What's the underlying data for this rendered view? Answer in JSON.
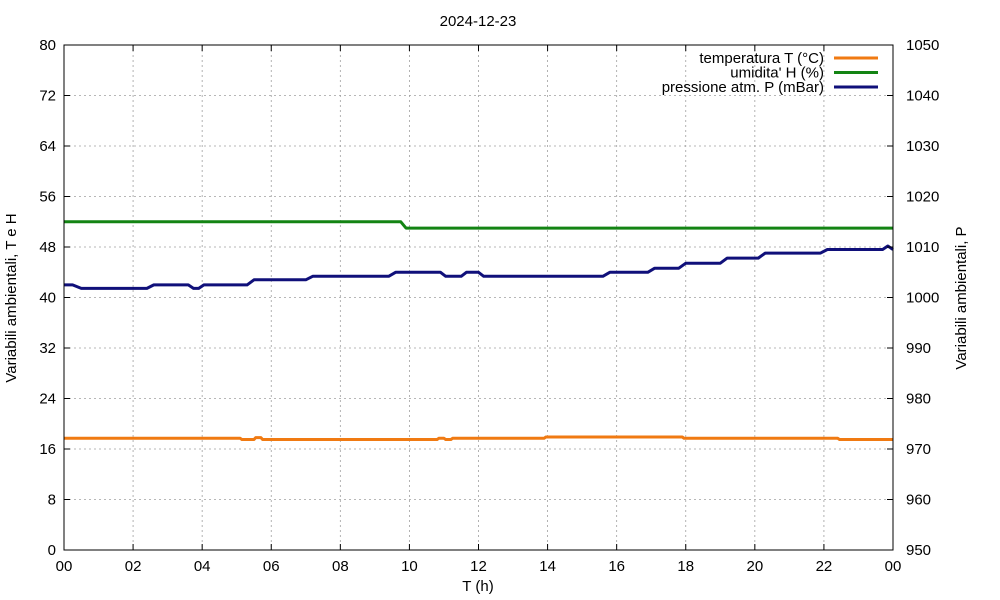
{
  "chart_data": {
    "type": "line",
    "title": "2024-12-23",
    "xlabel": "T (h)",
    "ylabel_left": "Variabili ambientali, T e H",
    "ylabel_right": "Variabili ambientali, P",
    "x_ticks": [
      "00",
      "02",
      "04",
      "06",
      "08",
      "10",
      "12",
      "14",
      "16",
      "18",
      "20",
      "22",
      "00"
    ],
    "xlim": [
      0,
      24
    ],
    "ylim_left": [
      0,
      80
    ],
    "ylim_right": [
      950,
      1050
    ],
    "y_ticks_left": [
      "0",
      "8",
      "16",
      "24",
      "32",
      "40",
      "48",
      "56",
      "64",
      "72",
      "80"
    ],
    "y_ticks_right": [
      "950",
      "960",
      "970",
      "980",
      "990",
      "1000",
      "1010",
      "1020",
      "1030",
      "1040",
      "1050"
    ],
    "grid": true,
    "legend_position": "top-right",
    "series": [
      {
        "name": "temperatura T (°C)",
        "axis": "left",
        "color": "#f07a12",
        "points": [
          [
            0,
            17.7
          ],
          [
            5.1,
            17.7
          ],
          [
            5.15,
            17.5
          ],
          [
            5.5,
            17.5
          ],
          [
            5.55,
            17.8
          ],
          [
            5.7,
            17.8
          ],
          [
            5.75,
            17.5
          ],
          [
            10.8,
            17.5
          ],
          [
            10.85,
            17.7
          ],
          [
            11.0,
            17.7
          ],
          [
            11.05,
            17.5
          ],
          [
            11.2,
            17.5
          ],
          [
            11.25,
            17.7
          ],
          [
            13.9,
            17.7
          ],
          [
            13.95,
            17.9
          ],
          [
            17.9,
            17.9
          ],
          [
            17.95,
            17.7
          ],
          [
            22.4,
            17.7
          ],
          [
            22.45,
            17.5
          ],
          [
            24,
            17.5
          ]
        ]
      },
      {
        "name": "umidita' H (%)",
        "axis": "left",
        "color": "#138413",
        "points": [
          [
            0,
            52
          ],
          [
            9.75,
            52
          ],
          [
            9.9,
            51
          ],
          [
            24,
            51
          ]
        ]
      },
      {
        "name": "pressione atm. P (mBar)",
        "axis": "right",
        "color": "#10107a",
        "points": [
          [
            0,
            1002.5
          ],
          [
            0.25,
            1002.5
          ],
          [
            0.5,
            1001.8
          ],
          [
            2.4,
            1001.8
          ],
          [
            2.6,
            1002.5
          ],
          [
            3.6,
            1002.5
          ],
          [
            3.75,
            1001.8
          ],
          [
            3.9,
            1001.8
          ],
          [
            4.05,
            1002.5
          ],
          [
            5.3,
            1002.5
          ],
          [
            5.5,
            1003.5
          ],
          [
            7.0,
            1003.5
          ],
          [
            7.2,
            1004.2
          ],
          [
            9.4,
            1004.2
          ],
          [
            9.6,
            1005.0
          ],
          [
            10.9,
            1005.0
          ],
          [
            11.05,
            1004.2
          ],
          [
            11.5,
            1004.2
          ],
          [
            11.65,
            1005.0
          ],
          [
            12.0,
            1005.0
          ],
          [
            12.15,
            1004.2
          ],
          [
            15.6,
            1004.2
          ],
          [
            15.8,
            1005.0
          ],
          [
            16.9,
            1005.0
          ],
          [
            17.1,
            1005.8
          ],
          [
            17.8,
            1005.8
          ],
          [
            18.0,
            1006.8
          ],
          [
            19.0,
            1006.8
          ],
          [
            19.2,
            1007.8
          ],
          [
            20.1,
            1007.8
          ],
          [
            20.3,
            1008.8
          ],
          [
            21.9,
            1008.8
          ],
          [
            22.1,
            1009.5
          ],
          [
            23.7,
            1009.5
          ],
          [
            23.85,
            1010.2
          ],
          [
            24,
            1009.5
          ]
        ]
      }
    ]
  }
}
